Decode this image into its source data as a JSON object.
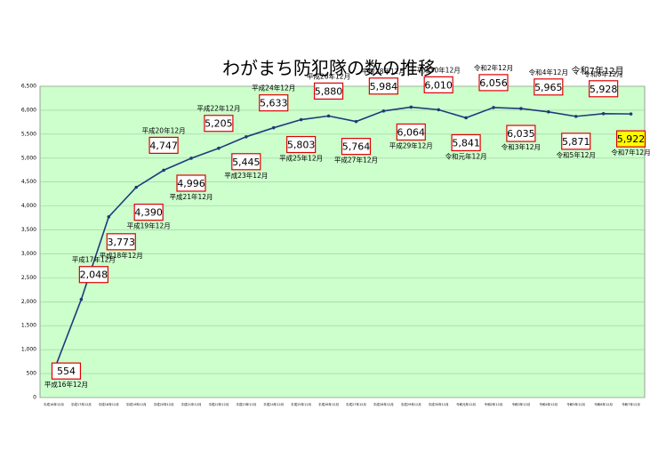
{
  "chart_data": {
    "type": "line",
    "title": "わがまち防犯隊の数の推移",
    "subtitle": "令和7年12月",
    "categories": [
      "平成16年12月",
      "平成17年12月",
      "平成18年12月",
      "平成19年12月",
      "平成20年12月",
      "平成21年12月",
      "平成22年12月",
      "平成23年12月",
      "平成24年12月",
      "平成25年12月",
      "平成26年12月",
      "平成27年12月",
      "平成28年12月",
      "平成29年12月",
      "平成30年12月",
      "令和元年12月",
      "令和2年12月",
      "令和3年12月",
      "令和4年12月",
      "令和5年12月",
      "令和6年12月",
      "令和7年12月"
    ],
    "values": [
      554,
      2048,
      3773,
      4390,
      4747,
      4996,
      5205,
      5445,
      5633,
      5803,
      5880,
      5764,
      5984,
      6064,
      6010,
      5841,
      6056,
      6035,
      5965,
      5871,
      5928,
      5922
    ],
    "value_labels": [
      "554",
      "2,048",
      "3,773",
      "4,390",
      "4,747",
      "4,996",
      "5,205",
      "5,445",
      "5,633",
      "5,803",
      "5,880",
      "5,764",
      "5,984",
      "6,064",
      "6,010",
      "5,841",
      "6,056",
      "6,035",
      "5,965",
      "5,871",
      "5,928",
      "5,922"
    ],
    "color": "#1f3a7a",
    "ylim": [
      0,
      6500
    ],
    "yticks": [
      0,
      500,
      {
        "value": 1000,
        "label": "1,000"
      },
      {
        "value": 1500,
        "label": "1,500"
      },
      {
        "value": 2000,
        "label": "2,000"
      },
      {
        "value": 2500,
        "label": "2,500"
      },
      {
        "value": 3000,
        "label": "3,000"
      },
      {
        "value": 3500,
        "label": "3,500"
      },
      {
        "value": 4000,
        "label": "4,000"
      },
      {
        "value": 4500,
        "label": "4,500"
      },
      {
        "value": 5000,
        "label": "5,000"
      },
      {
        "value": 5500,
        "label": "5,500"
      },
      {
        "value": 6000,
        "label": "6,000"
      },
      {
        "value": 6500,
        "label": "6,500"
      }
    ],
    "grid": true
  }
}
